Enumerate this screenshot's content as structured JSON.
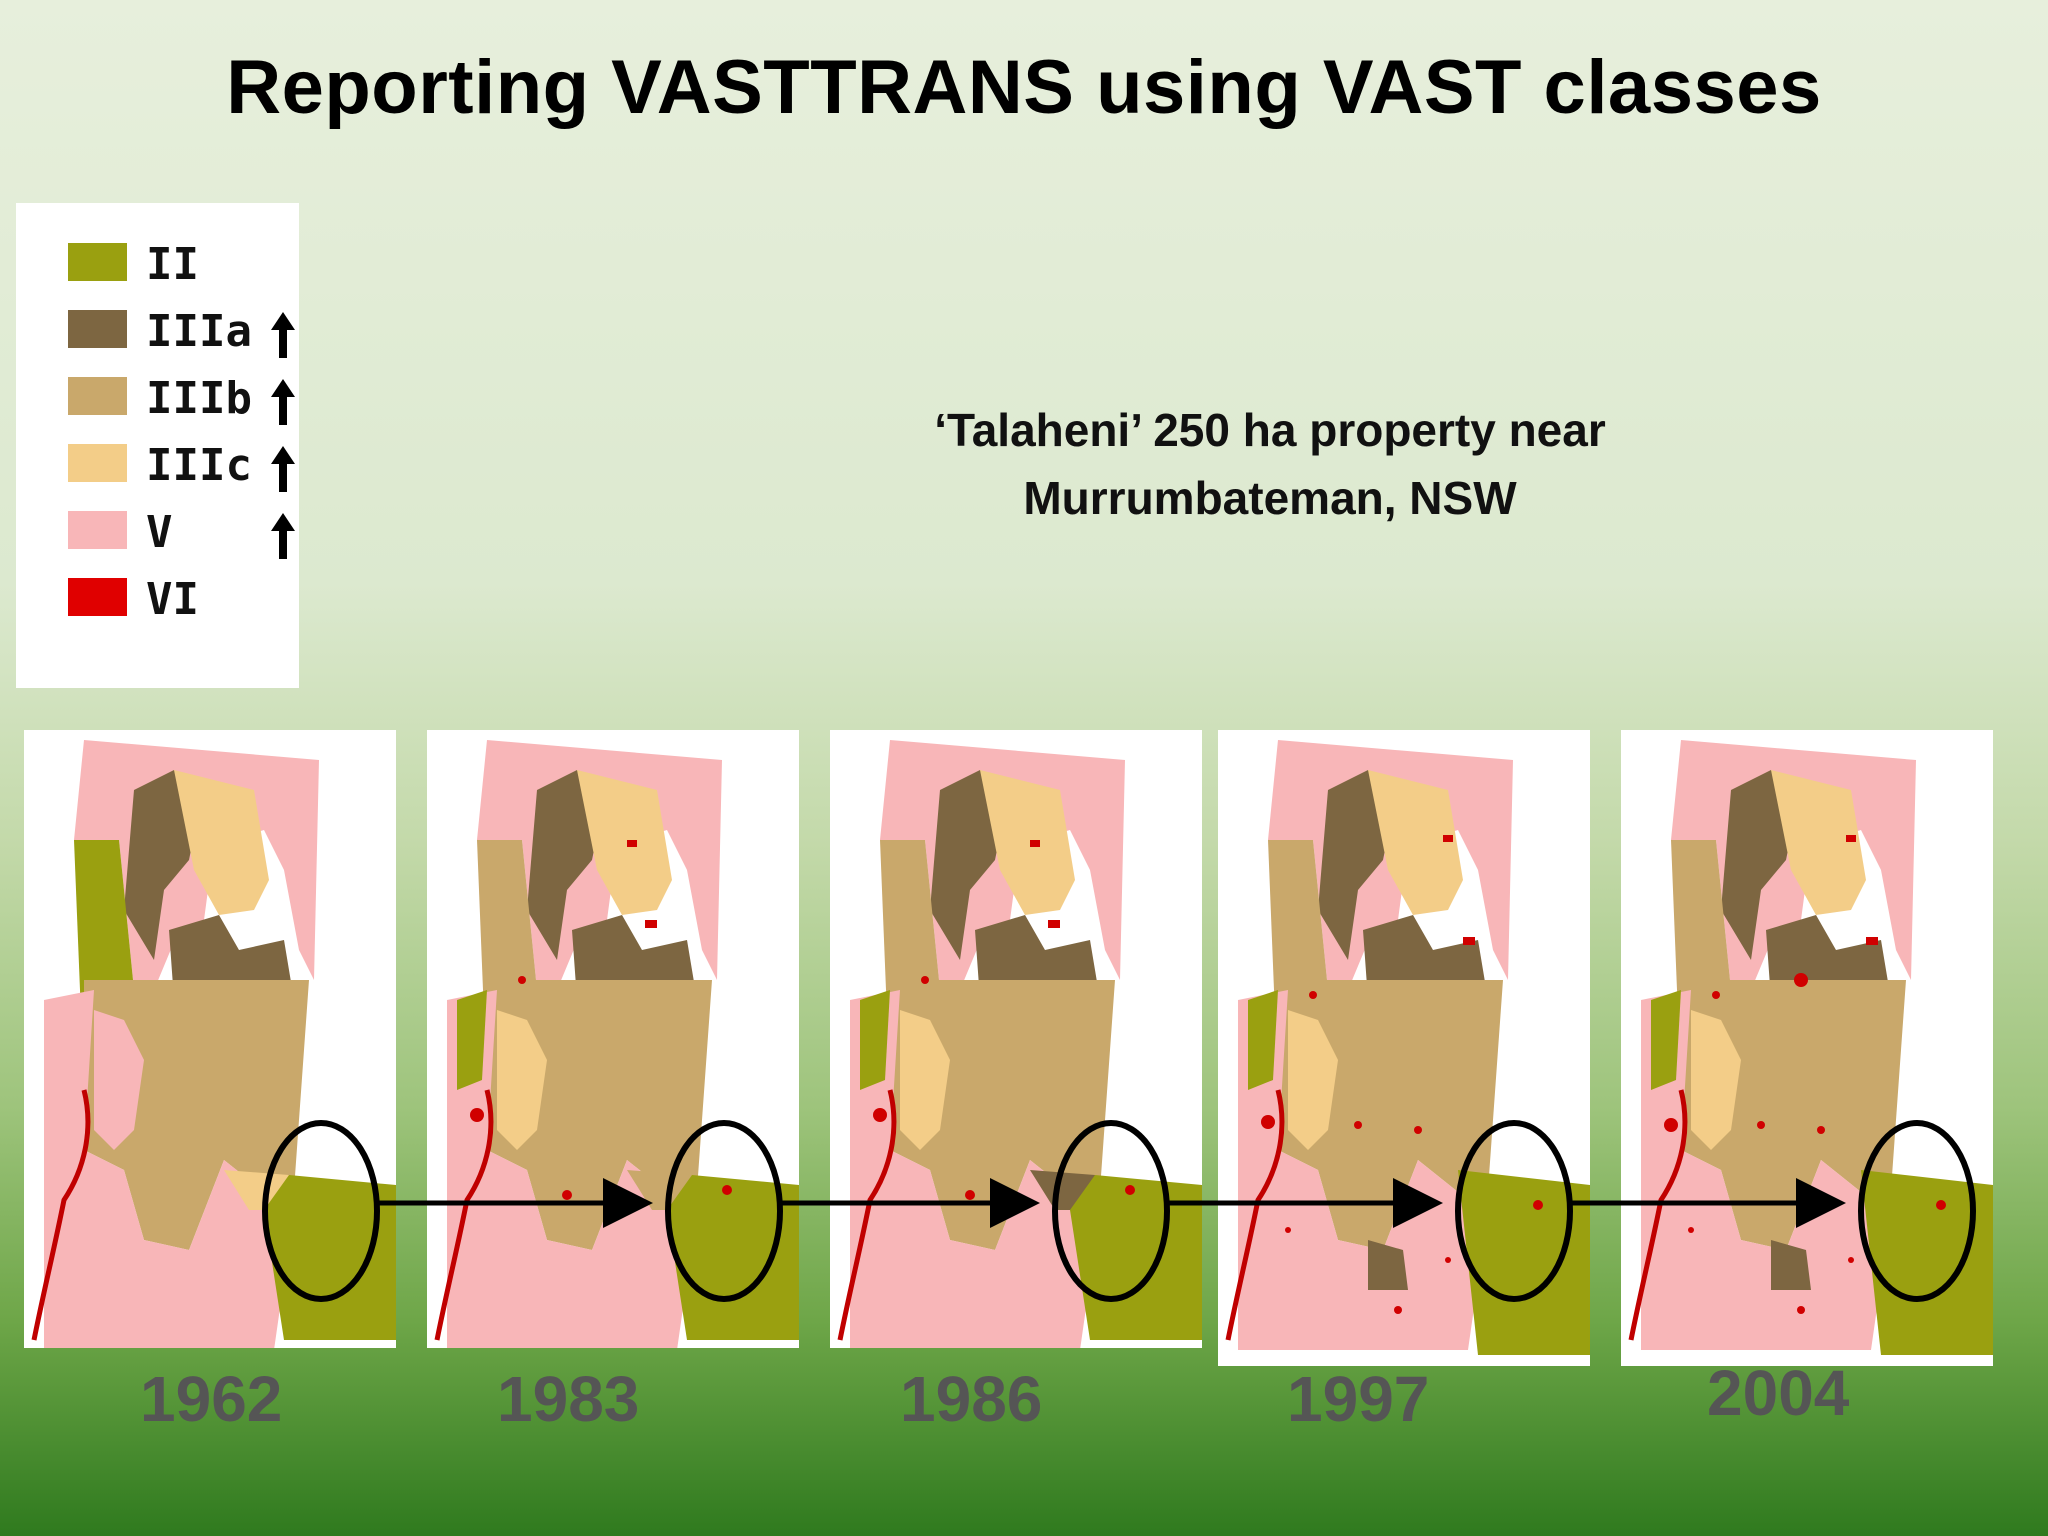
{
  "title": "Reporting VASTTRANS using VAST classes",
  "subtitle_line1": "‘Talaheni’ 250 ha property near",
  "subtitle_line2": "Murrumbateman, NSW",
  "legend": [
    {
      "label": "II",
      "color": "#9aa010",
      "arrow": false
    },
    {
      "label": "IIIa",
      "color": "#7d6641",
      "arrow": true
    },
    {
      "label": "IIIb",
      "color": "#c9a86b",
      "arrow": true
    },
    {
      "label": "IIIc",
      "color": "#f3cd88",
      "arrow": true
    },
    {
      "label": "V",
      "color": "#f8b6b8",
      "arrow": true
    },
    {
      "label": "VI",
      "color": "#e00000",
      "arrow": false
    }
  ],
  "years": [
    "1962",
    "1983",
    "1986",
    "1997",
    "2004"
  ]
}
